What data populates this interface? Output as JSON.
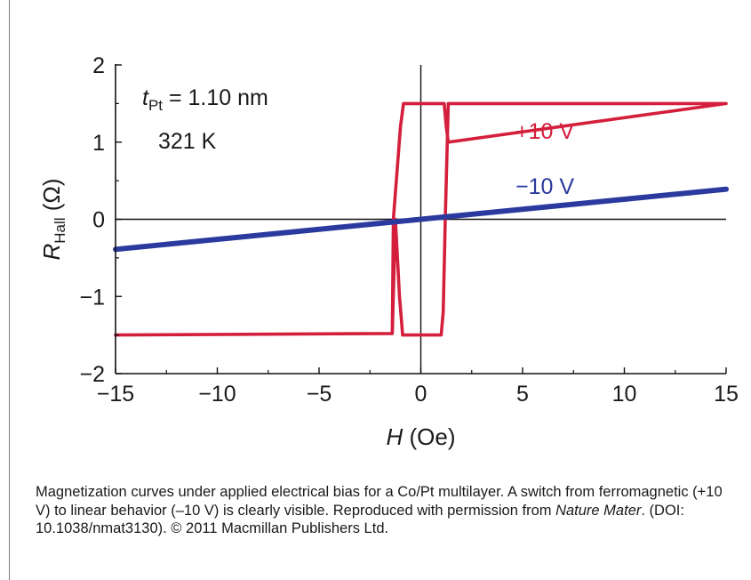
{
  "chart_data": {
    "type": "line",
    "xlabel": {
      "italic": "H",
      "rest": " (Oe)"
    },
    "ylabel": {
      "italic": "R",
      "sub": "Hall",
      "rest": " (Ω)"
    },
    "xlim": [
      -15,
      15
    ],
    "ylim": [
      -2,
      2
    ],
    "xticks": [
      -15,
      -10,
      -5,
      0,
      5,
      10,
      15
    ],
    "xtick_labels": [
      "−15",
      "−10",
      "−5",
      "0",
      "5",
      "10",
      "15"
    ],
    "yticks": [
      -2,
      -1,
      0,
      1,
      2
    ],
    "ytick_labels": [
      "−2",
      "−1",
      "0",
      "1",
      "2"
    ],
    "annotation": {
      "t_italic": "t",
      "t_sub": "Pt",
      "t_rest": " = 1.10 nm",
      "temperature": "321 K"
    },
    "series": [
      {
        "name": "+10 V",
        "color": "#d41f3c",
        "x": [
          -15,
          -1.4,
          -1.35,
          -1.0,
          -0.85,
          1.15,
          1.15,
          1.25,
          1.35,
          15,
          15,
          1.35,
          1.35,
          1.2,
          1.1,
          1.0,
          -0.9,
          -0.9,
          -1.05,
          -1.25,
          -1.4,
          -15
        ],
        "y": [
          -1.5,
          -1.48,
          0.0,
          1.2,
          1.5,
          1.5,
          1.5,
          1.2,
          1.0,
          1.5,
          1.5,
          1.5,
          1.5,
          0.0,
          -1.2,
          -1.5,
          -1.5,
          -1.48,
          -1.0,
          0.0,
          -1.48,
          -1.5
        ]
      },
      {
        "name": "−10 V",
        "color": "#2b3a9e",
        "x": [
          -15,
          15
        ],
        "y": [
          -0.39,
          0.39
        ]
      }
    ]
  },
  "caption": {
    "part1": "Magnetization curves under applied electrical bias for a Co/Pt multilayer. A switch from ferromagnetic (+10 V) to linear behavior (–10 V) is clearly visible. Reproduced with permission from ",
    "journal": "Nature Mater",
    "part2": ". (DOI: 10.1038/nmat3130). © 2011 Macmillan Publishers Ltd."
  }
}
